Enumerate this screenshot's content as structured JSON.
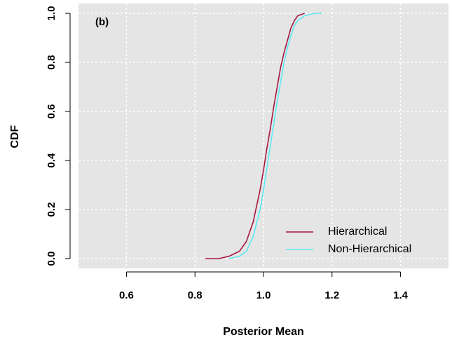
{
  "chart_data": {
    "type": "line",
    "annotation": "(b)",
    "xlabel": "Posterior Mean",
    "ylabel": "CDF",
    "xlim": [
      0.46,
      1.54
    ],
    "ylim": [
      -0.04,
      1.04
    ],
    "xticks": [
      {
        "value": 0.6,
        "label": "0.6"
      },
      {
        "value": 0.8,
        "label": "0.8"
      },
      {
        "value": 1.0,
        "label": "1.0"
      },
      {
        "value": 1.2,
        "label": "1.2"
      },
      {
        "value": 1.4,
        "label": "1.4"
      }
    ],
    "yticks": [
      {
        "value": 0,
        "label": "0.0"
      },
      {
        "value": 0.2,
        "label": "0.2"
      },
      {
        "value": 0.4,
        "label": "0.4"
      },
      {
        "value": 0.6,
        "label": "0.6"
      },
      {
        "value": 0.8,
        "label": "0.8"
      },
      {
        "value": 1.0,
        "label": "1.0"
      }
    ],
    "grid": true,
    "legend": "bottom-right",
    "series": [
      {
        "name": "Hierarchical",
        "color": "#a3173f",
        "x": [
          0.83,
          0.87,
          0.9,
          0.93,
          0.95,
          0.97,
          0.99,
          1.0,
          1.01,
          1.02,
          1.03,
          1.04,
          1.05,
          1.06,
          1.07,
          1.08,
          1.09,
          1.1,
          1.12
        ],
        "values": [
          0,
          0,
          0.01,
          0.03,
          0.07,
          0.15,
          0.28,
          0.36,
          0.45,
          0.53,
          0.62,
          0.7,
          0.78,
          0.84,
          0.89,
          0.94,
          0.97,
          0.99,
          1
        ]
      },
      {
        "name": "Non-Hierarchical",
        "color": "#5ce8f2",
        "x": [
          0.9,
          0.93,
          0.95,
          0.97,
          0.99,
          1.0,
          1.01,
          1.02,
          1.03,
          1.04,
          1.05,
          1.06,
          1.07,
          1.08,
          1.09,
          1.1,
          1.12,
          1.15,
          1.17
        ],
        "values": [
          0,
          0.01,
          0.03,
          0.09,
          0.2,
          0.28,
          0.37,
          0.46,
          0.55,
          0.64,
          0.72,
          0.8,
          0.86,
          0.91,
          0.95,
          0.97,
          0.99,
          1,
          1
        ]
      }
    ]
  }
}
